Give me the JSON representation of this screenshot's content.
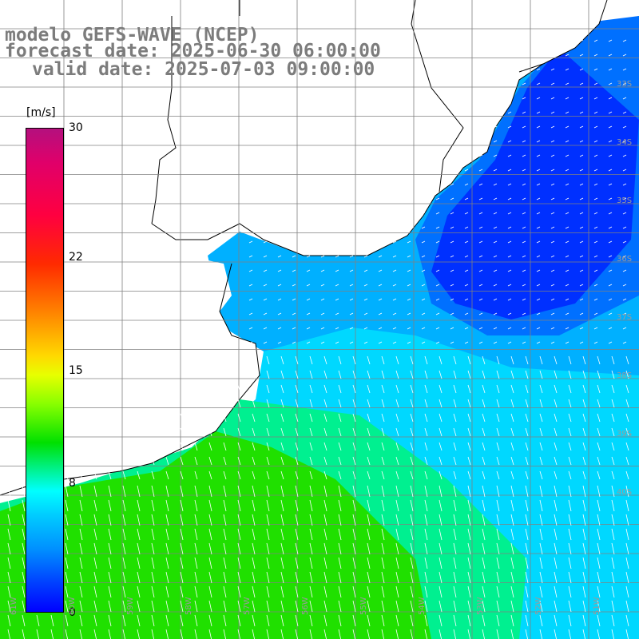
{
  "title": {
    "line1": "modelo GEFS-WAVE (NCEP)",
    "line2": "forecast date: 2025-06-30 06:00:00",
    "line3": "valid date: 2025-07-03 09:00:00"
  },
  "colorbar": {
    "unit": "[m/s]",
    "ticks": [
      {
        "label": "30",
        "value": 30
      },
      {
        "label": "22",
        "value": 22
      },
      {
        "label": "15",
        "value": 15
      },
      {
        "label": "8",
        "value": 8
      },
      {
        "label": "0",
        "value": 0
      }
    ],
    "min": 0,
    "max": 30
  },
  "map": {
    "lat_labels": [
      "33S",
      "34S",
      "35S",
      "36S",
      "37S",
      "38S",
      "39S",
      "40S"
    ],
    "lon_labels": [
      "61W",
      "60W",
      "59W",
      "58W",
      "57W",
      "56W",
      "55W",
      "54W",
      "53W",
      "52W",
      "51W"
    ],
    "colors": {
      "deep_blue": "#0030ff",
      "blue": "#0070ff",
      "light_blue": "#00b0ff",
      "cyan": "#00ffff",
      "aquamarine": "#00f090",
      "green": "#20e000",
      "land": "#ffffff",
      "coastline": "#000000",
      "grid": "#808080",
      "arrow": "#ffffff"
    }
  }
}
